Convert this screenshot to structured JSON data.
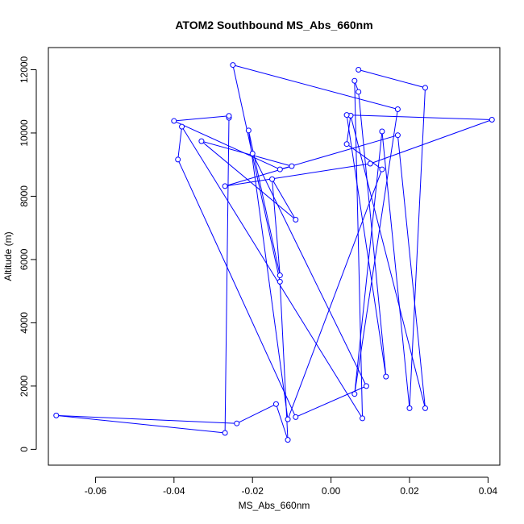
{
  "chart_data": {
    "type": "line",
    "title": "ATOM2 Southbound MS_Abs_660nm",
    "xlabel": "MS_Abs_660nm",
    "ylabel": "Altitude (m)",
    "xlim": [
      -0.072,
      0.043
    ],
    "ylim": [
      -500,
      12700
    ],
    "xticks": [
      -0.06,
      -0.04,
      -0.02,
      0.0,
      0.02,
      0.04
    ],
    "xtick_labels": [
      "-0.06",
      "-0.04",
      "-0.02",
      "0.00",
      "0.02",
      "0.04"
    ],
    "yticks": [
      0,
      2000,
      4000,
      6000,
      8000,
      10000,
      12000
    ],
    "ytick_labels": [
      "0",
      "2000",
      "4000",
      "6000",
      "8000",
      "10000",
      "12000"
    ],
    "grid": false,
    "series_color": "#0000ff",
    "x": [
      0.007,
      0.024,
      0.02,
      0.013,
      0.006,
      0.017,
      -0.025,
      -0.013,
      -0.011,
      -0.014,
      -0.024,
      -0.07,
      -0.027,
      -0.026,
      -0.026,
      -0.04,
      -0.013,
      0.017,
      0.024,
      0.005,
      0.004,
      0.013,
      -0.011,
      -0.021,
      -0.013,
      -0.015,
      -0.009,
      -0.033,
      -0.01,
      -0.027,
      0.01,
      0.041,
      0.004,
      0.014,
      0.007,
      0.006,
      0.008,
      -0.038,
      -0.039,
      -0.009,
      0.009,
      -0.02
    ],
    "y": [
      12000,
      11430,
      1300,
      10050,
      1750,
      10750,
      12150,
      5300,
      300,
      1430,
      820,
      1070,
      520,
      10480,
      10540,
      10380,
      8850,
      9930,
      1300,
      10550,
      9650,
      8850,
      950,
      10080,
      5500,
      8540,
      7260,
      9740,
      8950,
      8320,
      9030,
      10420,
      10570,
      2300,
      11300,
      11650,
      980,
      10200,
      9160,
      1020,
      2000,
      9350
    ]
  }
}
